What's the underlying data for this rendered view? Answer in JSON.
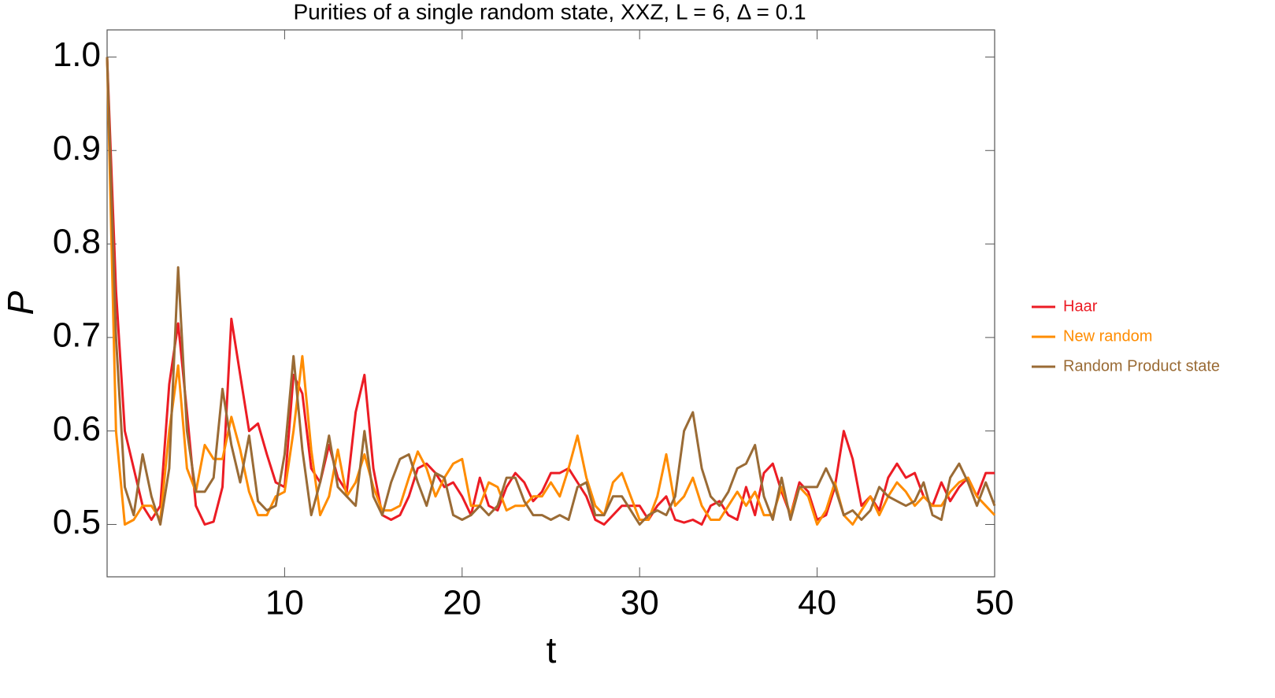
{
  "chart_data": {
    "type": "line",
    "title": "Purities of a single random state, XXZ, L = 6, Δ = 0.1",
    "x_label": "t",
    "y_label": "P",
    "x": [
      0,
      0.5,
      1,
      1.5,
      2,
      2.5,
      3,
      3.5,
      4,
      4.5,
      5,
      5.5,
      6,
      6.5,
      7,
      7.5,
      8,
      8.5,
      9,
      9.5,
      10,
      10.5,
      11,
      11.5,
      12,
      12.5,
      13,
      13.5,
      14,
      14.5,
      15,
      15.5,
      16,
      16.5,
      17,
      17.5,
      18,
      18.5,
      19,
      19.5,
      20,
      20.5,
      21,
      21.5,
      22,
      22.5,
      23,
      23.5,
      24,
      24.5,
      25,
      25.5,
      26,
      26.5,
      27,
      27.5,
      28,
      28.5,
      29,
      29.5,
      30,
      30.5,
      31,
      31.5,
      32,
      32.5,
      33,
      33.5,
      34,
      34.5,
      35,
      35.5,
      36,
      36.5,
      37,
      37.5,
      38,
      38.5,
      39,
      39.5,
      40,
      40.5,
      41,
      41.5,
      42,
      42.5,
      43,
      43.5,
      44,
      44.5,
      45,
      45.5,
      46,
      46.5,
      47,
      47.5,
      48,
      48.5,
      49,
      49.5,
      50
    ],
    "series": [
      {
        "name": "Haar",
        "color": "#ec1c24",
        "values": [
          1.0,
          0.75,
          0.6,
          0.56,
          0.52,
          0.505,
          0.52,
          0.65,
          0.715,
          0.62,
          0.52,
          0.5,
          0.503,
          0.54,
          0.72,
          0.66,
          0.6,
          0.608,
          0.575,
          0.545,
          0.54,
          0.66,
          0.64,
          0.56,
          0.545,
          0.585,
          0.55,
          0.535,
          0.62,
          0.66,
          0.56,
          0.51,
          0.505,
          0.51,
          0.53,
          0.56,
          0.565,
          0.555,
          0.54,
          0.545,
          0.53,
          0.51,
          0.55,
          0.52,
          0.515,
          0.54,
          0.555,
          0.545,
          0.525,
          0.535,
          0.555,
          0.555,
          0.56,
          0.545,
          0.53,
          0.505,
          0.5,
          0.51,
          0.52,
          0.52,
          0.52,
          0.505,
          0.52,
          0.53,
          0.505,
          0.502,
          0.505,
          0.5,
          0.52,
          0.525,
          0.51,
          0.505,
          0.54,
          0.51,
          0.555,
          0.565,
          0.535,
          0.51,
          0.545,
          0.535,
          0.505,
          0.51,
          0.54,
          0.6,
          0.57,
          0.52,
          0.53,
          0.515,
          0.55,
          0.565,
          0.55,
          0.555,
          0.53,
          0.52,
          0.545,
          0.525,
          0.54,
          0.55,
          0.53,
          0.555,
          0.555
        ]
      },
      {
        "name": "New random",
        "color": "#ff8c00",
        "values": [
          1.0,
          0.6,
          0.5,
          0.505,
          0.52,
          0.52,
          0.505,
          0.6,
          0.67,
          0.56,
          0.535,
          0.585,
          0.57,
          0.57,
          0.615,
          0.58,
          0.535,
          0.51,
          0.51,
          0.53,
          0.535,
          0.6,
          0.68,
          0.58,
          0.51,
          0.53,
          0.58,
          0.53,
          0.545,
          0.575,
          0.54,
          0.515,
          0.515,
          0.52,
          0.55,
          0.578,
          0.56,
          0.53,
          0.55,
          0.565,
          0.57,
          0.52,
          0.52,
          0.545,
          0.54,
          0.515,
          0.52,
          0.52,
          0.53,
          0.53,
          0.545,
          0.53,
          0.56,
          0.595,
          0.55,
          0.52,
          0.51,
          0.545,
          0.555,
          0.53,
          0.505,
          0.505,
          0.53,
          0.575,
          0.52,
          0.53,
          0.55,
          0.52,
          0.505,
          0.505,
          0.52,
          0.535,
          0.52,
          0.535,
          0.51,
          0.51,
          0.54,
          0.51,
          0.54,
          0.53,
          0.5,
          0.515,
          0.545,
          0.51,
          0.5,
          0.515,
          0.53,
          0.51,
          0.53,
          0.545,
          0.535,
          0.52,
          0.53,
          0.52,
          0.52,
          0.535,
          0.545,
          0.55,
          0.53,
          0.52,
          0.51
        ]
      },
      {
        "name": "Random Product state",
        "color": "#9a6b35",
        "values": [
          1.0,
          0.7,
          0.54,
          0.51,
          0.575,
          0.53,
          0.5,
          0.56,
          0.775,
          0.6,
          0.535,
          0.535,
          0.55,
          0.645,
          0.585,
          0.545,
          0.595,
          0.525,
          0.515,
          0.52,
          0.575,
          0.68,
          0.58,
          0.51,
          0.545,
          0.595,
          0.54,
          0.53,
          0.52,
          0.6,
          0.53,
          0.51,
          0.545,
          0.57,
          0.575,
          0.545,
          0.52,
          0.555,
          0.55,
          0.51,
          0.505,
          0.51,
          0.52,
          0.51,
          0.52,
          0.55,
          0.55,
          0.525,
          0.51,
          0.51,
          0.505,
          0.51,
          0.505,
          0.54,
          0.545,
          0.51,
          0.51,
          0.53,
          0.53,
          0.515,
          0.5,
          0.51,
          0.515,
          0.51,
          0.53,
          0.6,
          0.62,
          0.56,
          0.53,
          0.52,
          0.535,
          0.56,
          0.565,
          0.585,
          0.53,
          0.505,
          0.55,
          0.505,
          0.54,
          0.54,
          0.54,
          0.56,
          0.54,
          0.51,
          0.515,
          0.505,
          0.515,
          0.54,
          0.53,
          0.525,
          0.52,
          0.525,
          0.545,
          0.51,
          0.505,
          0.55,
          0.565,
          0.545,
          0.52,
          0.545,
          0.52
        ]
      }
    ],
    "xlim": [
      0,
      50
    ],
    "xticks": [
      10,
      20,
      30,
      40,
      50
    ],
    "ylim": [
      0.444,
      1.029
    ],
    "yticks": [
      0.5,
      0.6,
      0.7,
      0.8,
      0.9,
      {
        "value": 1.0,
        "label": "1.0"
      }
    ],
    "legend": "right"
  }
}
